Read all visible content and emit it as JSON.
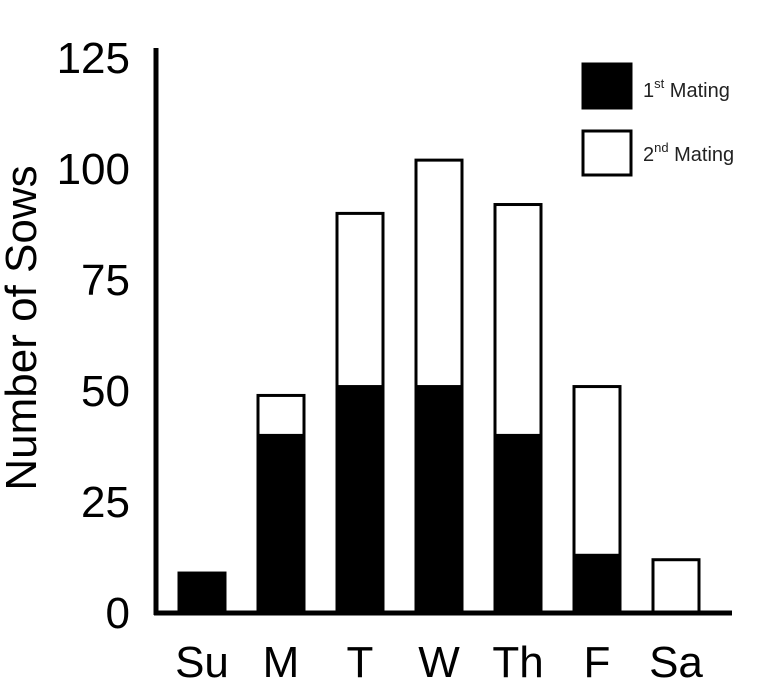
{
  "chart_data": {
    "type": "bar",
    "stacked": true,
    "title": "",
    "xlabel": "",
    "ylabel": "Number of Sows",
    "ylim": [
      0,
      125
    ],
    "yticks": [
      0,
      25,
      50,
      75,
      100,
      125
    ],
    "grid": false,
    "legend_position": "top-right",
    "categories": [
      "Su",
      "M",
      "T",
      "W",
      "Th",
      "F",
      "Sa"
    ],
    "series": [
      {
        "name": "1st Mating",
        "legend_base": "1",
        "legend_sup": "st",
        "legend_rest": " Mating",
        "color": "#000000",
        "values": [
          9,
          40,
          51,
          51,
          40,
          13,
          0
        ]
      },
      {
        "name": "2nd Mating",
        "legend_base": "2",
        "legend_sup": "nd",
        "legend_rest": " Mating",
        "color": "#ffffff",
        "values": [
          0,
          9,
          39,
          51,
          52,
          38,
          12
        ]
      }
    ]
  }
}
